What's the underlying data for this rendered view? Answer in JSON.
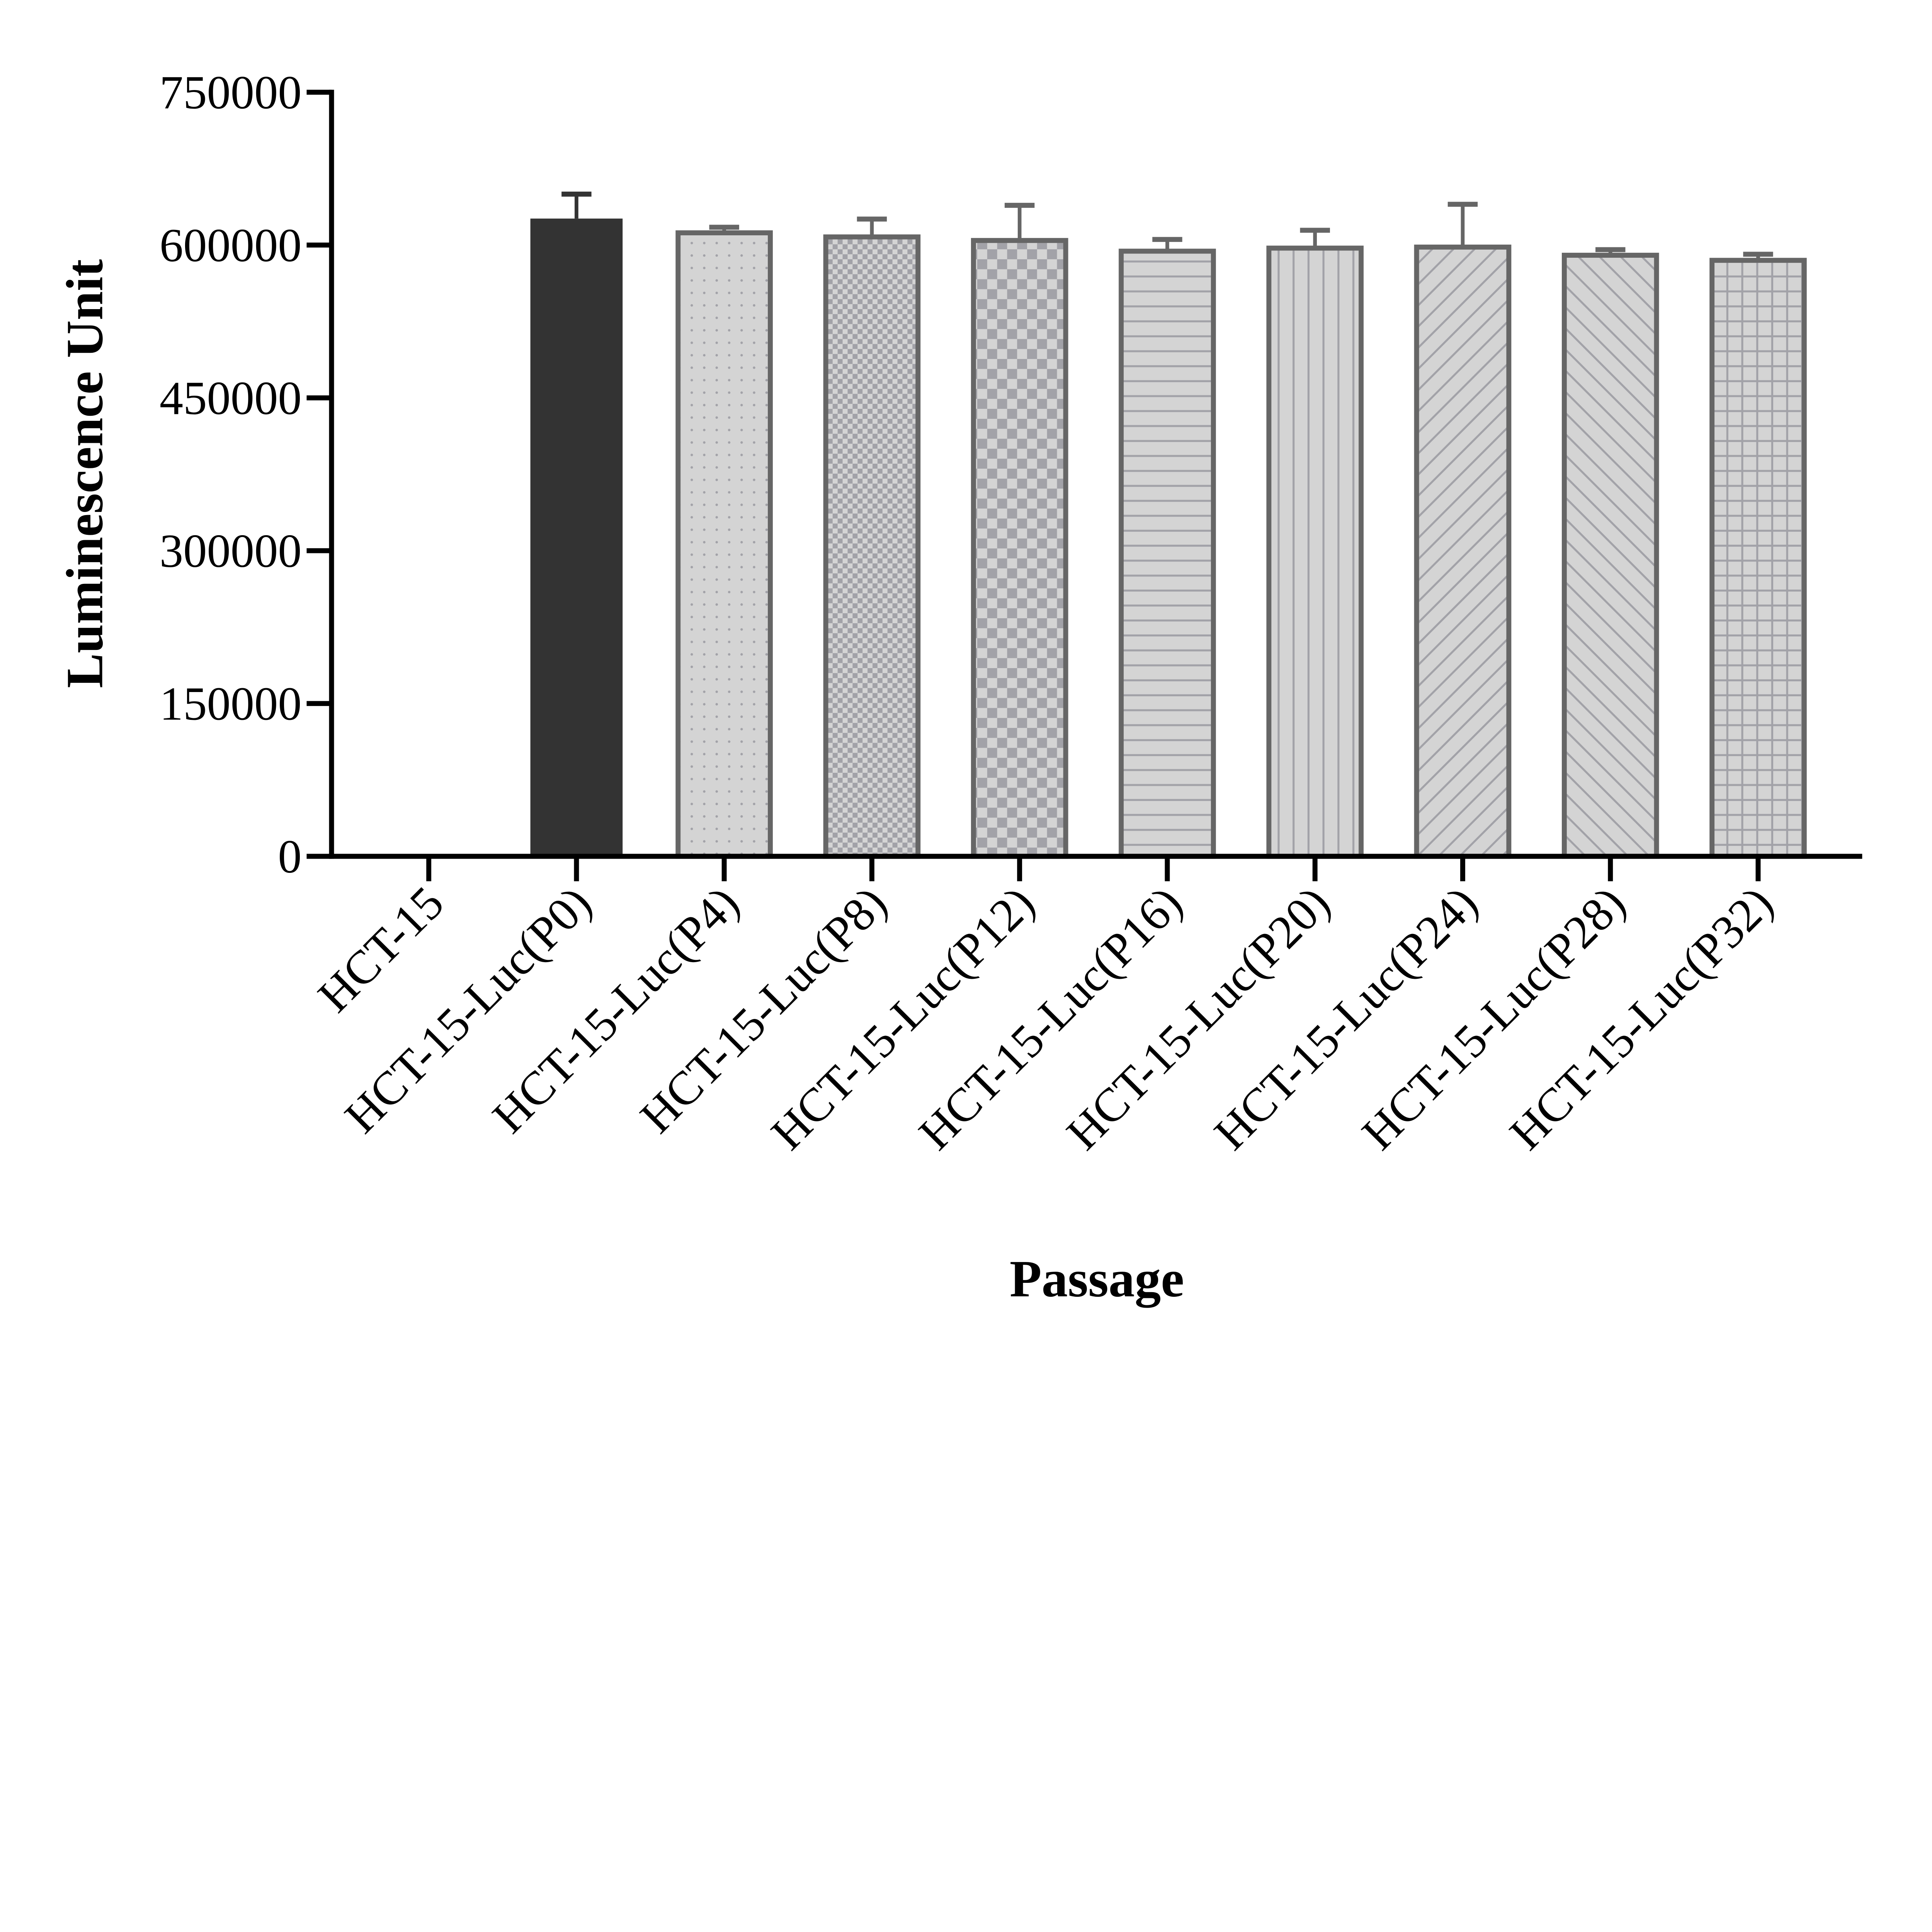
{
  "chart_data": {
    "type": "bar",
    "title": "",
    "xlabel": "Passage",
    "ylabel": "Luminescence Unit",
    "ylim": [
      0,
      750000
    ],
    "yticks": [
      0,
      150000,
      300000,
      450000,
      600000,
      750000
    ],
    "ytick_labels": [
      "0",
      "150000",
      "300000",
      "450000",
      "600000",
      "750000"
    ],
    "grid": false,
    "legend": "none",
    "categories": [
      "HCT-15",
      "HCT-15-Luc(P0)",
      "HCT-15-Luc(P4)",
      "HCT-15-Luc(P8)",
      "HCT-15-Luc(P12)",
      "HCT-15-Luc(P16)",
      "HCT-15-Luc(P20)",
      "HCT-15-Luc(P24)",
      "HCT-15-Luc(P28)",
      "HCT-15-Luc(P32)"
    ],
    "values": [
      0,
      626000,
      612000,
      608000,
      604500,
      594000,
      597000,
      598000,
      590000,
      585000
    ],
    "error_upper": [
      0,
      650000,
      617500,
      625500,
      639000,
      605500,
      614500,
      640000,
      595500,
      591000
    ],
    "fills": [
      "none",
      "solid",
      "dots",
      "fine-checker",
      "checker",
      "horizontal-lines",
      "vertical-lines",
      "diagonal-lines",
      "back-diagonal-lines",
      "grid"
    ],
    "colors": {
      "solid": "#333333",
      "bar_fill": "#d4d4d4",
      "bar_outline": "#666666",
      "pattern": "#a2a2a8",
      "axis": "#000000"
    }
  }
}
